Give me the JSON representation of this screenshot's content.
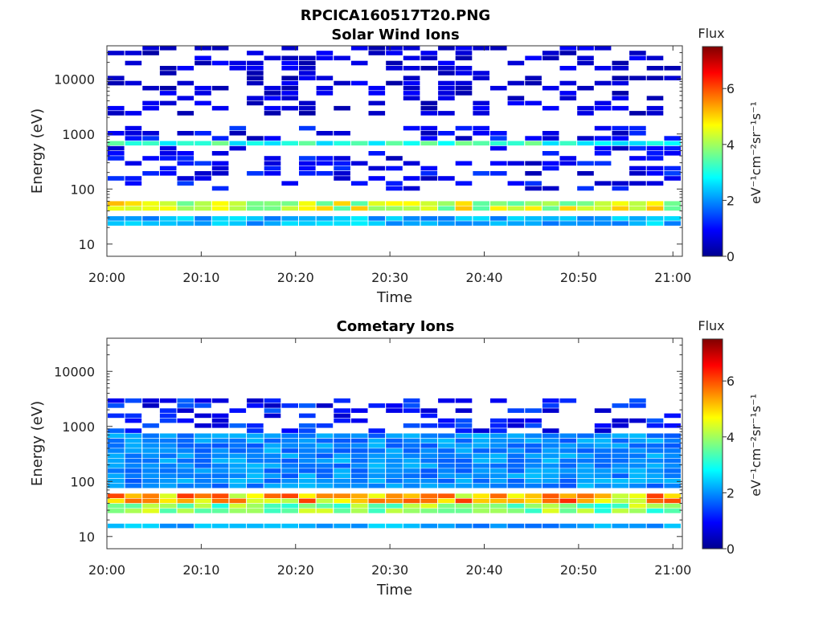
{
  "figure_title": "RPCICA160517T20.PNG",
  "chart_data": [
    {
      "type": "heatmap",
      "title": "Solar Wind Ions",
      "xlabel": "Time",
      "ylabel": "Energy (eV)",
      "y_scale": "log",
      "ylim": [
        6,
        40000
      ],
      "xlim": [
        "20:00",
        "21:01"
      ],
      "x_ticks": [
        "20:00",
        "20:10",
        "20:20",
        "20:30",
        "20:40",
        "20:50",
        "21:00"
      ],
      "y_ticks": [
        "10",
        "100",
        "1000",
        "10000"
      ],
      "colorbar": {
        "title": "Flux",
        "label": "eV⁻¹cm⁻²sr⁻¹s⁻¹",
        "ticks": [
          "0",
          "2",
          "4",
          "6"
        ],
        "range": [
          0,
          7.5
        ],
        "colormap": "jet"
      },
      "columns": 33,
      "bands": [
        {
          "energy": [
            42,
            62
          ],
          "flux": 4.4,
          "note": "dense core band"
        },
        {
          "energy": [
            22,
            32
          ],
          "flux": 2.3
        },
        {
          "energy": [
            600,
            760
          ],
          "flux": 3.2,
          "note": "recurring band"
        },
        {
          "energy": [
            100,
            1500
          ],
          "flux": 1.0,
          "note": "sparse scatter"
        },
        {
          "energy": [
            2000,
            40000
          ],
          "flux": 0.7,
          "note": "sparse high-energy scatter"
        }
      ]
    },
    {
      "type": "heatmap",
      "title": "Cometary Ions",
      "xlabel": "Time",
      "ylabel": "Energy (eV)",
      "y_scale": "log",
      "ylim": [
        6,
        40000
      ],
      "xlim": [
        "20:00",
        "21:01"
      ],
      "x_ticks": [
        "20:00",
        "20:10",
        "20:20",
        "20:30",
        "20:40",
        "20:50",
        "21:00"
      ],
      "y_ticks": [
        "10",
        "100",
        "1000",
        "10000"
      ],
      "colorbar": {
        "title": "Flux",
        "label": "eV⁻¹cm⁻²sr⁻¹s⁻¹",
        "ticks": [
          "0",
          "2",
          "4",
          "6"
        ],
        "range": [
          0,
          7.5
        ],
        "colormap": "jet"
      },
      "columns": 33,
      "bands": [
        {
          "energy": [
            40,
            65
          ],
          "flux": 5.3,
          "note": "intense core band"
        },
        {
          "energy": [
            25,
            38
          ],
          "flux": 3.8
        },
        {
          "energy": [
            15,
            19
          ],
          "flux": 2.2
        },
        {
          "energy": [
            80,
            800
          ],
          "flux": 2.0,
          "note": "broad continuum"
        },
        {
          "energy": [
            800,
            3000
          ],
          "flux": 1.2,
          "note": "spiky high-energy columns"
        }
      ]
    }
  ]
}
